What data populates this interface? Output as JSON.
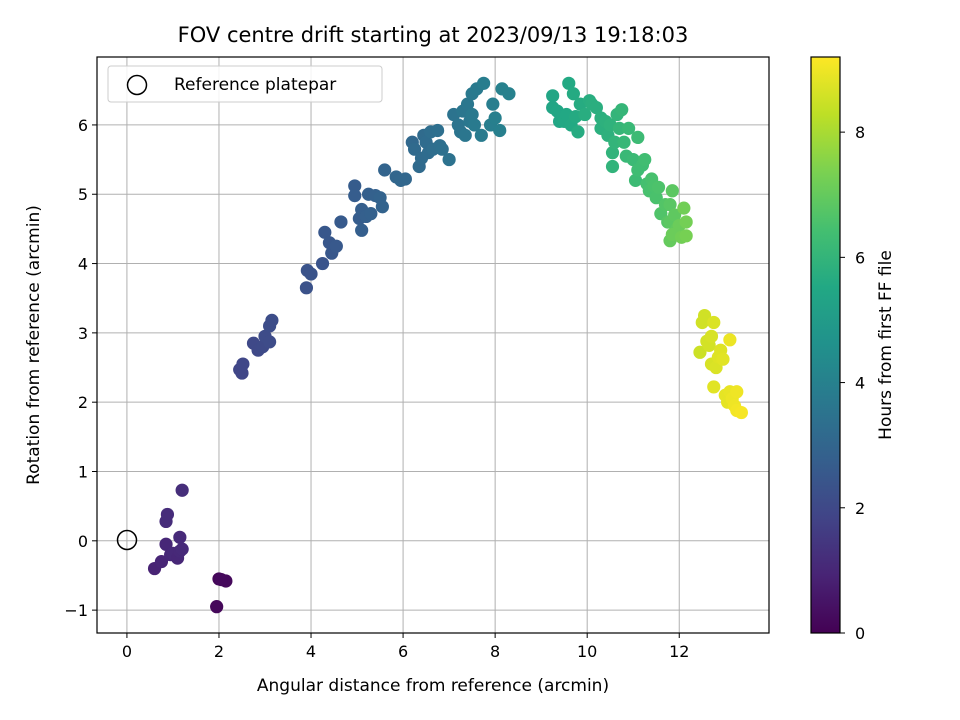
{
  "chart_data": {
    "type": "scatter",
    "title": "FOV centre drift starting at 2023/09/13 19:18:03",
    "xlabel": "Angular distance from reference (arcmin)",
    "ylabel": "Rotation from reference (arcmin)",
    "xlim": [
      -0.65,
      13.95
    ],
    "ylim": [
      -1.33,
      6.98
    ],
    "xticks": [
      0,
      2,
      4,
      6,
      8,
      10,
      12
    ],
    "yticks": [
      -1,
      0,
      1,
      2,
      3,
      4,
      5,
      6
    ],
    "xtick_labels": [
      "0",
      "2",
      "4",
      "6",
      "8",
      "10",
      "12"
    ],
    "ytick_labels": [
      "−1",
      "0",
      "1",
      "2",
      "3",
      "4",
      "5",
      "6"
    ],
    "grid": true,
    "legend": {
      "position": "top-left",
      "entries": [
        {
          "label": "Reference platepar",
          "marker": "open-circle"
        }
      ]
    },
    "reference_point": {
      "x": 0,
      "y": 0
    },
    "colorbar": {
      "label": "Hours from first FF file",
      "colormap": "viridis",
      "range": [
        0,
        9.2
      ],
      "ticks": [
        0,
        2,
        4,
        6,
        8
      ],
      "tick_labels": [
        "0",
        "2",
        "4",
        "6",
        "8"
      ]
    },
    "points": [
      [
        2.0,
        -0.55,
        0.15
      ],
      [
        2.15,
        -0.58,
        0.2
      ],
      [
        1.95,
        -0.95,
        0.18
      ],
      [
        2.05,
        -0.56,
        0.22
      ],
      [
        0.6,
        -0.4,
        0.9
      ],
      [
        0.75,
        -0.3,
        0.95
      ],
      [
        0.85,
        -0.05,
        1.0
      ],
      [
        0.95,
        -0.2,
        1.0
      ],
      [
        1.0,
        -0.18,
        1.05
      ],
      [
        1.1,
        -0.25,
        1.0
      ],
      [
        1.15,
        -0.15,
        1.05
      ],
      [
        1.2,
        -0.12,
        1.1
      ],
      [
        1.15,
        0.05,
        1.1
      ],
      [
        0.85,
        0.28,
        1.15
      ],
      [
        0.88,
        0.38,
        1.15
      ],
      [
        1.2,
        0.73,
        1.2
      ],
      [
        2.45,
        2.47,
        1.9
      ],
      [
        2.5,
        2.42,
        1.9
      ],
      [
        2.52,
        2.55,
        1.95
      ],
      [
        2.75,
        2.85,
        2.0
      ],
      [
        2.85,
        2.75,
        2.0
      ],
      [
        2.95,
        2.8,
        2.05
      ],
      [
        3.0,
        2.95,
        2.1
      ],
      [
        3.1,
        2.87,
        2.1
      ],
      [
        3.1,
        3.1,
        2.15
      ],
      [
        3.15,
        3.18,
        2.15
      ],
      [
        3.9,
        3.65,
        2.3
      ],
      [
        3.92,
        3.9,
        2.35
      ],
      [
        4.0,
        3.85,
        2.35
      ],
      [
        4.25,
        4.0,
        2.4
      ],
      [
        4.3,
        4.45,
        2.5
      ],
      [
        4.4,
        4.3,
        2.5
      ],
      [
        4.45,
        4.15,
        2.5
      ],
      [
        4.55,
        4.25,
        2.55
      ],
      [
        4.65,
        4.6,
        2.6
      ],
      [
        4.95,
        5.12,
        2.65
      ],
      [
        4.95,
        4.98,
        2.7
      ],
      [
        5.05,
        4.65,
        2.7
      ],
      [
        5.1,
        4.48,
        2.75
      ],
      [
        5.1,
        4.78,
        2.75
      ],
      [
        5.2,
        4.68,
        2.8
      ],
      [
        5.25,
        5.0,
        2.8
      ],
      [
        5.3,
        4.72,
        2.85
      ],
      [
        5.4,
        4.98,
        2.85
      ],
      [
        5.5,
        4.95,
        2.9
      ],
      [
        5.55,
        4.82,
        2.9
      ],
      [
        5.6,
        5.35,
        2.95
      ],
      [
        5.85,
        5.25,
        3.0
      ],
      [
        5.95,
        5.2,
        3.05
      ],
      [
        6.05,
        5.22,
        3.05
      ],
      [
        6.2,
        5.75,
        3.1
      ],
      [
        6.25,
        5.65,
        3.15
      ],
      [
        6.35,
        5.4,
        3.15
      ],
      [
        6.4,
        5.52,
        3.2
      ],
      [
        6.45,
        5.85,
        3.2
      ],
      [
        6.5,
        5.75,
        3.25
      ],
      [
        6.55,
        5.6,
        3.25
      ],
      [
        6.6,
        5.9,
        3.3
      ],
      [
        6.65,
        5.65,
        3.3
      ],
      [
        6.75,
        5.92,
        3.35
      ],
      [
        6.8,
        5.7,
        3.35
      ],
      [
        6.85,
        5.65,
        3.4
      ],
      [
        7.0,
        5.5,
        3.45
      ],
      [
        7.1,
        6.15,
        3.5
      ],
      [
        7.2,
        6.0,
        3.55
      ],
      [
        7.25,
        5.9,
        3.55
      ],
      [
        7.3,
        6.2,
        3.6
      ],
      [
        7.35,
        5.85,
        3.6
      ],
      [
        7.4,
        6.3,
        3.65
      ],
      [
        7.45,
        6.05,
        3.65
      ],
      [
        7.5,
        6.45,
        3.7
      ],
      [
        7.5,
        6.15,
        3.7
      ],
      [
        7.55,
        6.0,
        3.75
      ],
      [
        7.6,
        6.52,
        3.75
      ],
      [
        7.7,
        5.85,
        3.8
      ],
      [
        7.75,
        6.6,
        3.85
      ],
      [
        7.9,
        6.0,
        3.9
      ],
      [
        7.95,
        6.3,
        3.9
      ],
      [
        8.0,
        6.1,
        3.95
      ],
      [
        8.1,
        5.92,
        3.95
      ],
      [
        8.15,
        6.52,
        4.0
      ],
      [
        8.3,
        6.45,
        4.0
      ],
      [
        9.25,
        6.42,
        5.4
      ],
      [
        9.25,
        6.25,
        5.4
      ],
      [
        9.35,
        6.2,
        5.45
      ],
      [
        9.4,
        6.05,
        5.45
      ],
      [
        9.5,
        6.05,
        5.5
      ],
      [
        9.55,
        6.15,
        5.5
      ],
      [
        9.6,
        6.6,
        5.55
      ],
      [
        9.65,
        6.0,
        5.55
      ],
      [
        9.7,
        6.45,
        5.6
      ],
      [
        9.75,
        6.12,
        5.6
      ],
      [
        9.8,
        5.9,
        5.65
      ],
      [
        9.85,
        6.3,
        5.65
      ],
      [
        9.95,
        6.15,
        5.7
      ],
      [
        10.05,
        6.35,
        5.7
      ],
      [
        10.1,
        6.3,
        5.75
      ],
      [
        10.2,
        6.25,
        5.75
      ],
      [
        10.3,
        6.1,
        5.8
      ],
      [
        10.3,
        5.95,
        5.8
      ],
      [
        10.4,
        6.05,
        5.85
      ],
      [
        10.45,
        5.85,
        5.85
      ],
      [
        10.5,
        6.0,
        5.9
      ],
      [
        10.55,
        5.6,
        5.95
      ],
      [
        10.55,
        5.4,
        5.95
      ],
      [
        10.6,
        5.75,
        6.0
      ],
      [
        10.65,
        6.15,
        6.0
      ],
      [
        10.7,
        5.95,
        6.05
      ],
      [
        10.75,
        6.22,
        6.05
      ],
      [
        10.8,
        5.75,
        6.1
      ],
      [
        10.85,
        5.55,
        6.15
      ],
      [
        10.9,
        5.95,
        6.15
      ],
      [
        11.0,
        5.5,
        6.2
      ],
      [
        11.05,
        5.2,
        6.25
      ],
      [
        11.1,
        5.82,
        6.25
      ],
      [
        11.1,
        5.35,
        6.3
      ],
      [
        11.2,
        5.42,
        6.3
      ],
      [
        11.25,
        5.5,
        6.35
      ],
      [
        11.3,
        5.15,
        6.45
      ],
      [
        11.35,
        5.05,
        6.5
      ],
      [
        11.4,
        5.22,
        6.5
      ],
      [
        11.45,
        5.12,
        6.55
      ],
      [
        11.5,
        4.95,
        6.55
      ],
      [
        11.55,
        5.1,
        6.6
      ],
      [
        11.6,
        4.72,
        6.65
      ],
      [
        11.7,
        4.85,
        6.7
      ],
      [
        11.75,
        4.6,
        6.75
      ],
      [
        11.8,
        4.85,
        6.8
      ],
      [
        11.85,
        5.05,
        6.85
      ],
      [
        11.8,
        4.6,
        6.85
      ],
      [
        11.9,
        4.7,
        6.9
      ],
      [
        11.95,
        4.5,
        6.95
      ],
      [
        11.8,
        4.33,
        7.0
      ],
      [
        12.0,
        4.55,
        7.1
      ],
      [
        11.85,
        4.42,
        7.1
      ],
      [
        12.05,
        4.38,
        7.2
      ],
      [
        12.1,
        4.8,
        7.2
      ],
      [
        12.15,
        4.6,
        7.25
      ],
      [
        12.15,
        4.4,
        7.3
      ],
      [
        12.45,
        2.72,
        8.5
      ],
      [
        12.5,
        3.15,
        8.55
      ],
      [
        12.55,
        3.25,
        8.55
      ],
      [
        12.6,
        2.88,
        8.6
      ],
      [
        12.65,
        2.82,
        8.6
      ],
      [
        12.7,
        2.95,
        8.65
      ],
      [
        12.7,
        2.55,
        8.65
      ],
      [
        12.75,
        3.15,
        8.7
      ],
      [
        12.8,
        2.5,
        8.7
      ],
      [
        12.85,
        2.65,
        8.75
      ],
      [
        12.9,
        2.75,
        8.75
      ],
      [
        12.95,
        2.62,
        8.8
      ],
      [
        12.75,
        2.22,
        8.8
      ],
      [
        13.0,
        2.1,
        8.85
      ],
      [
        13.05,
        2.0,
        8.85
      ],
      [
        13.1,
        2.15,
        8.9
      ],
      [
        13.15,
        2.05,
        8.95
      ],
      [
        13.1,
        2.9,
        8.95
      ],
      [
        13.2,
        1.95,
        9.0
      ],
      [
        13.25,
        2.15,
        9.0
      ],
      [
        13.25,
        1.88,
        9.05
      ],
      [
        13.35,
        1.85,
        9.1
      ]
    ]
  }
}
